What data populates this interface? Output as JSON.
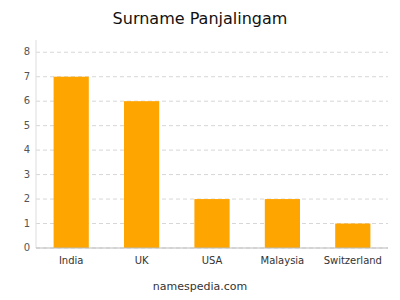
{
  "chart_data": {
    "type": "bar",
    "title": "Surname Panjalingam",
    "categories": [
      "India",
      "UK",
      "USA",
      "Malaysia",
      "Switzerland"
    ],
    "values": [
      7,
      6,
      2,
      2,
      1
    ],
    "color": "#FFA500",
    "ylim": [
      0,
      8.5
    ],
    "yticks": [
      0,
      1,
      2,
      3,
      4,
      5,
      6,
      7,
      8
    ],
    "grid": true,
    "annotations": [
      "namespedia.com"
    ]
  }
}
